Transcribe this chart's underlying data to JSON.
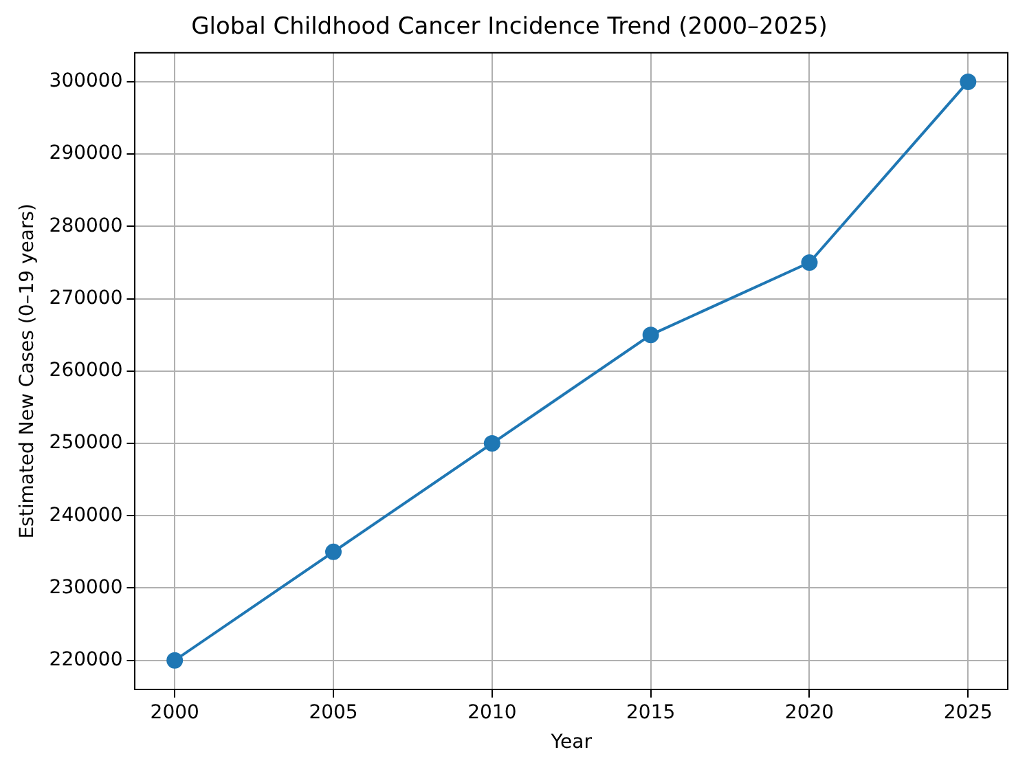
{
  "chart_data": {
    "type": "line",
    "title": "Global Childhood Cancer Incidence Trend (2000–2025)",
    "xlabel": "Year",
    "ylabel": "Estimated New Cases (0–19 years)",
    "x": [
      2000,
      2005,
      2010,
      2015,
      2020,
      2025
    ],
    "series": [
      {
        "color": "#1f77b4",
        "values": [
          220000,
          235000,
          250000,
          265000,
          275000,
          300000
        ]
      }
    ],
    "xlim": [
      1998.75,
      2026.25
    ],
    "xticks": [
      2000,
      2005,
      2010,
      2015,
      2020,
      2025
    ],
    "ylim": [
      216000,
      304000
    ],
    "yticks": [
      220000,
      230000,
      240000,
      250000,
      260000,
      270000,
      280000,
      290000,
      300000
    ],
    "grid": true,
    "marker": "circle",
    "line_style": "solid",
    "legend": false
  }
}
